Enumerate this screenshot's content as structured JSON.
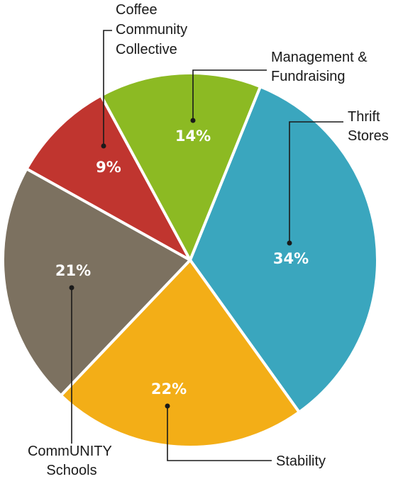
{
  "chart_data": {
    "type": "pie",
    "categories": [
      "Thrift Stores",
      "Stability",
      "CommUNITY Schools",
      "Coffee Community Collective",
      "Management & Fundraising"
    ],
    "values": [
      34,
      22,
      21,
      9,
      14
    ],
    "value_labels": [
      "34%",
      "22%",
      "21%",
      "9%",
      "14%"
    ],
    "label_lines": [
      [
        "Thrift",
        "Stores"
      ],
      [
        "Stability"
      ],
      [
        "CommUNITY",
        "Schools"
      ],
      [
        "Coffee",
        "Community",
        "Collective"
      ],
      [
        "Management &",
        "Fundraising"
      ]
    ],
    "colors": [
      "#3aa6be",
      "#f3ae17",
      "#7c7160",
      "#c0352f",
      "#8cba23"
    ],
    "title": "",
    "legend": "none"
  }
}
